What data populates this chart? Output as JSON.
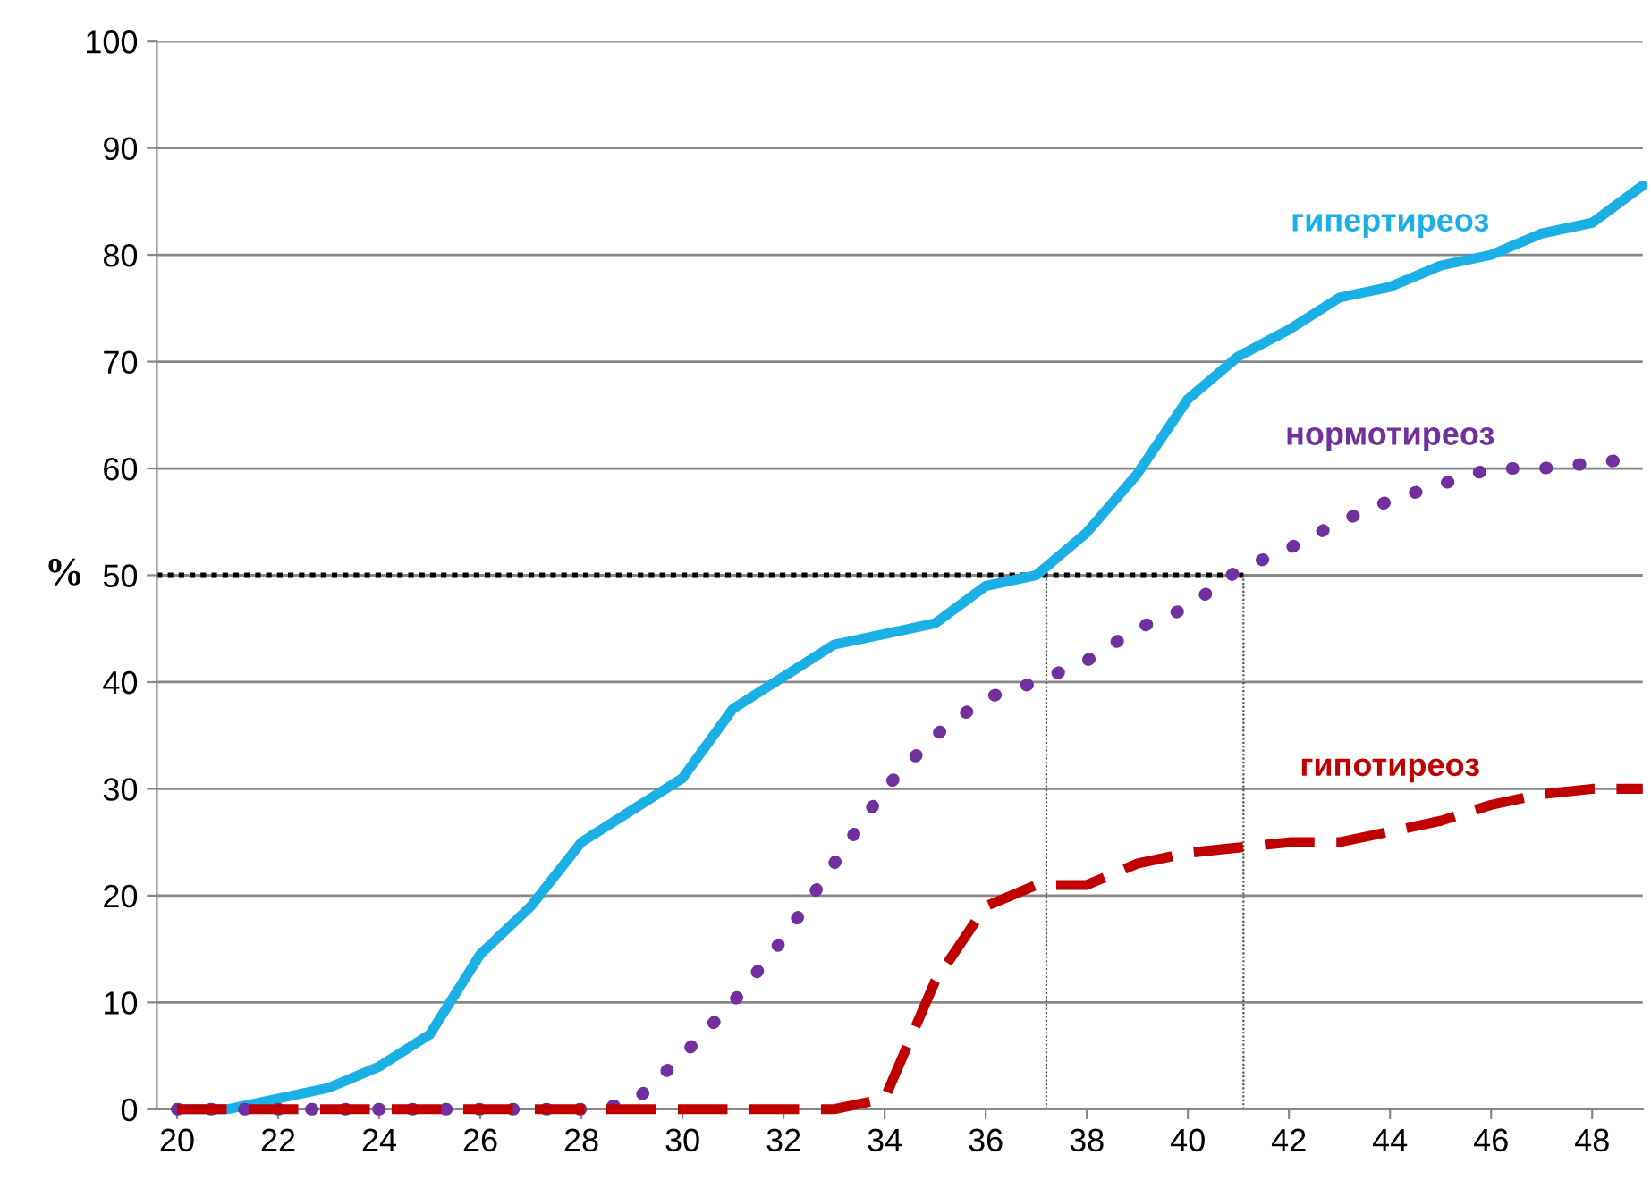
{
  "chart_data": {
    "type": "line",
    "ylabel": "%",
    "x": [
      20,
      21,
      22,
      23,
      24,
      25,
      26,
      27,
      28,
      29,
      30,
      31,
      32,
      33,
      34,
      35,
      36,
      37,
      38,
      39,
      40,
      41,
      42,
      43,
      44,
      45,
      46,
      47,
      48,
      49
    ],
    "series": [
      {
        "name": "гипертиреоз",
        "color": "#1ab0e6",
        "line_style": "solid",
        "values": [
          0,
          0,
          1,
          2,
          4,
          7,
          14.5,
          19,
          25,
          28,
          31,
          37.5,
          40.5,
          43.5,
          44.5,
          45.5,
          49,
          50,
          54,
          59.5,
          66.5,
          70.5,
          73,
          76,
          77,
          79,
          80,
          82,
          83,
          86.5
        ]
      },
      {
        "name": "нормотиреоз",
        "color": "#7030a0",
        "line_style": "dotted",
        "values": [
          0,
          0,
          0,
          0,
          0,
          0,
          0,
          0,
          0,
          0.5,
          5,
          10,
          16,
          23,
          30,
          35,
          38.5,
          40,
          42,
          45,
          47,
          50.5,
          52.5,
          55,
          57,
          58.5,
          60,
          60,
          60.5,
          61
        ]
      },
      {
        "name": "гипотиреоз",
        "color": "#c00000",
        "line_style": "dashed",
        "values": [
          0,
          0,
          0,
          0,
          0,
          0,
          0,
          0,
          0,
          0,
          0,
          0,
          0,
          0,
          1,
          12,
          19,
          21,
          21,
          23,
          24,
          24.5,
          25,
          25,
          26,
          27,
          28.5,
          29.5,
          30,
          30
        ]
      }
    ],
    "xlim": [
      19.6,
      49
    ],
    "xticks": [
      20,
      22,
      24,
      26,
      28,
      30,
      32,
      34,
      36,
      38,
      40,
      42,
      44,
      46,
      48
    ],
    "ylim": [
      0,
      100
    ],
    "yticks": [
      0,
      10,
      20,
      30,
      40,
      50,
      60,
      70,
      80,
      90,
      100
    ],
    "grid": "y",
    "legend": false,
    "ref_lines": [
      {
        "axis": "y",
        "value": 50,
        "color": "#000000",
        "line_style": "dotted"
      },
      {
        "axis": "x",
        "value": 37.2,
        "color": "#555555",
        "line_style": "dotted"
      },
      {
        "axis": "x",
        "value": 41.1,
        "color": "#555555",
        "line_style": "dotted"
      }
    ]
  }
}
